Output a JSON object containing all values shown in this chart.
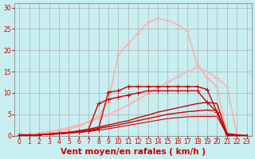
{
  "background_color": "#c8eef0",
  "grid_color": "#b0b0b0",
  "xlabel": "Vent moyen/en rafales ( km/h )",
  "xlabel_color": "#cc0000",
  "xlabel_fontsize": 7.5,
  "tick_color": "#cc0000",
  "xlim": [
    -0.5,
    23.5
  ],
  "ylim": [
    0,
    31
  ],
  "yticks": [
    0,
    5,
    10,
    15,
    20,
    25,
    30
  ],
  "xticks": [
    0,
    1,
    2,
    3,
    4,
    5,
    6,
    7,
    8,
    9,
    10,
    11,
    12,
    13,
    14,
    15,
    16,
    17,
    18,
    19,
    20,
    21,
    22,
    23
  ],
  "series": [
    {
      "x": [
        0,
        1,
        2,
        3,
        4,
        5,
        6,
        7,
        8,
        9,
        10,
        11,
        12,
        13,
        14,
        15,
        16,
        17,
        18,
        19,
        20,
        21,
        22,
        23
      ],
      "y": [
        0.5,
        0.3,
        0.4,
        0.6,
        0.9,
        1.5,
        2.2,
        3.2,
        4.5,
        8.0,
        19.0,
        21.5,
        24.0,
        26.5,
        27.5,
        27.0,
        26.0,
        24.5,
        16.5,
        13.5,
        11.5,
        0.5,
        0.1,
        0.1
      ],
      "color": "#ffaaaa",
      "linewidth": 1.0,
      "marker": "+",
      "markersize": 4
    },
    {
      "x": [
        0,
        1,
        2,
        3,
        4,
        5,
        6,
        7,
        8,
        9,
        10,
        11,
        12,
        13,
        14,
        15,
        16,
        17,
        18,
        19,
        20,
        21,
        22,
        23
      ],
      "y": [
        0,
        0.3,
        0.6,
        1.0,
        1.4,
        1.9,
        2.5,
        3.2,
        4.0,
        5.0,
        6.0,
        7.2,
        8.5,
        9.8,
        11.2,
        12.5,
        13.8,
        15.0,
        16.0,
        15.0,
        13.5,
        11.5,
        0.3,
        0.1
      ],
      "color": "#ffaaaa",
      "linewidth": 1.0,
      "marker": "+",
      "markersize": 4
    },
    {
      "x": [
        0,
        1,
        2,
        3,
        4,
        5,
        6,
        7,
        8,
        9,
        10,
        11,
        12,
        13,
        14,
        15,
        16,
        17,
        18,
        19,
        20,
        21,
        22,
        23
      ],
      "y": [
        0.2,
        0.1,
        0.2,
        0.3,
        0.4,
        0.6,
        0.8,
        1.0,
        1.5,
        10.2,
        10.5,
        11.5,
        11.5,
        11.5,
        11.5,
        11.5,
        11.5,
        11.5,
        11.5,
        10.8,
        5.5,
        0,
        0,
        0
      ],
      "color": "#cc0000",
      "linewidth": 1.0,
      "marker": "+",
      "markersize": 4
    },
    {
      "x": [
        0,
        1,
        2,
        3,
        4,
        5,
        6,
        7,
        8,
        9,
        10,
        11,
        12,
        13,
        14,
        15,
        16,
        17,
        18,
        19,
        20,
        21,
        22,
        23
      ],
      "y": [
        0,
        0.1,
        0.2,
        0.4,
        0.6,
        0.8,
        1.1,
        1.5,
        2.0,
        2.5,
        3.0,
        3.5,
        4.2,
        4.8,
        5.5,
        6.0,
        6.5,
        7.0,
        7.5,
        7.8,
        7.5,
        0.5,
        0.2,
        0
      ],
      "color": "#cc0000",
      "linewidth": 1.0,
      "marker": null,
      "markersize": 0
    },
    {
      "x": [
        0,
        1,
        2,
        3,
        4,
        5,
        6,
        7,
        8,
        9,
        10,
        11,
        12,
        13,
        14,
        15,
        16,
        17,
        18,
        19,
        20,
        21,
        22,
        23
      ],
      "y": [
        0,
        0.1,
        0.2,
        0.3,
        0.5,
        0.7,
        1.0,
        1.3,
        1.7,
        2.1,
        2.5,
        3.0,
        3.5,
        4.0,
        4.5,
        5.0,
        5.3,
        5.6,
        5.8,
        6.0,
        5.8,
        0.2,
        0,
        0
      ],
      "color": "#cc0000",
      "linewidth": 1.0,
      "marker": null,
      "markersize": 0
    },
    {
      "x": [
        0,
        1,
        2,
        3,
        4,
        5,
        6,
        7,
        8,
        9,
        10,
        11,
        12,
        13,
        14,
        15,
        16,
        17,
        18,
        19,
        20,
        21,
        22,
        23
      ],
      "y": [
        0,
        0.1,
        0.2,
        0.3,
        0.4,
        0.6,
        0.8,
        1.0,
        1.3,
        1.6,
        2.0,
        2.4,
        2.8,
        3.2,
        3.6,
        4.0,
        4.2,
        4.4,
        4.5,
        4.5,
        4.5,
        0.2,
        0,
        0
      ],
      "color": "#cc0000",
      "linewidth": 0.8,
      "marker": null,
      "markersize": 0
    },
    {
      "x": [
        0,
        1,
        2,
        3,
        4,
        5,
        6,
        7,
        8,
        9,
        10,
        11,
        12,
        13,
        14,
        15,
        16,
        17,
        18,
        19,
        20,
        21,
        22,
        23
      ],
      "y": [
        0,
        0.1,
        0.2,
        0.3,
        0.5,
        0.7,
        1.0,
        1.5,
        7.5,
        8.5,
        9.0,
        9.5,
        10.0,
        10.5,
        10.5,
        10.5,
        10.5,
        10.5,
        10.5,
        7.8,
        5.5,
        0.3,
        0,
        0
      ],
      "color": "#cc0000",
      "linewidth": 1.0,
      "marker": "+",
      "markersize": 4
    }
  ]
}
